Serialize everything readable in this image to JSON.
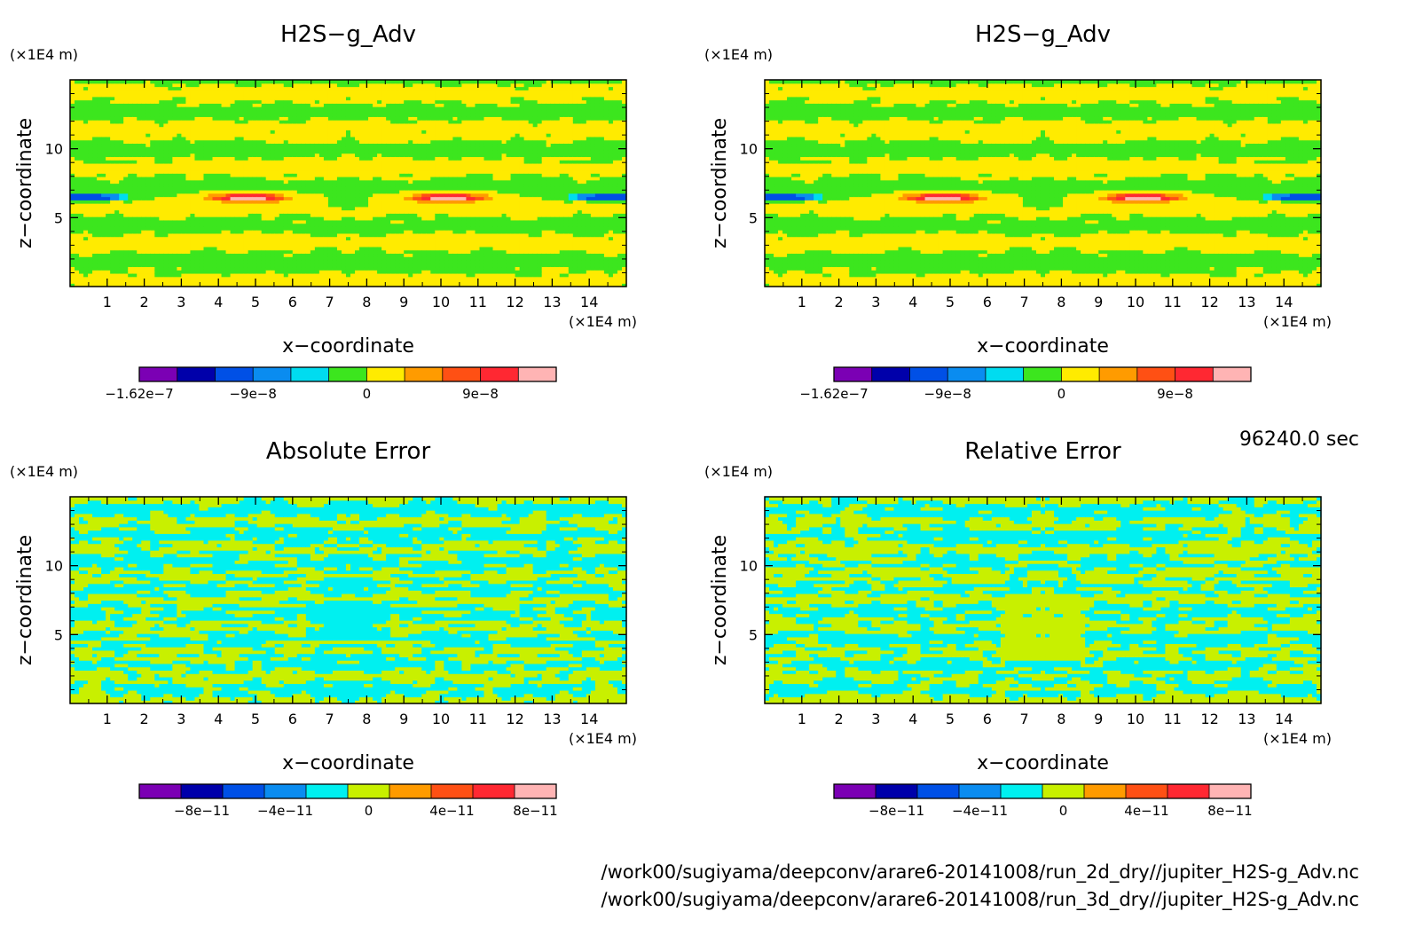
{
  "time_label": "96240.0 sec",
  "footer": {
    "lines": [
      "/work00/sugiyama/deepconv/arare6-20141008/run_2d_dry//jupiter_H2S-g_Adv.nc",
      "/work00/sugiyama/deepconv/arare6-20141008/run_3d_dry//jupiter_H2S-g_Adv.nc"
    ]
  },
  "chart_data": [
    {
      "type": "heatmap",
      "title": "H2S−g_Adv",
      "xlabel": "x−coordinate",
      "ylabel": "z−coordinate",
      "x_unit": "(×1E4 m)",
      "y_unit": "(×1E4 m)",
      "xlim": [
        0,
        15
      ],
      "ylim": [
        0,
        15
      ],
      "xticks": [
        "1",
        "2",
        "3",
        "4",
        "5",
        "6",
        "7",
        "8",
        "9",
        "10",
        "11",
        "12",
        "13",
        "14"
      ],
      "yticks": [
        "5",
        "10"
      ],
      "pattern": "field",
      "colorbar": {
        "colors": [
          "#7b00b4",
          "#0000aa",
          "#0050e6",
          "#0a8cf0",
          "#00dcf0",
          "#3ce61e",
          "#ffeb00",
          "#ff9b00",
          "#ff5014",
          "#ff2832",
          "#ffb4b4"
        ],
        "labels": [
          {
            "text": "−1.62e−7",
            "bin": 0
          },
          {
            "text": "−9e−8",
            "bin": 2.5
          },
          {
            "text": "0",
            "bin": 5.5
          },
          {
            "text": "9e−8",
            "bin": 8.5
          }
        ]
      }
    },
    {
      "type": "heatmap",
      "title": "H2S−g_Adv",
      "xlabel": "x−coordinate",
      "ylabel": "z−coordinate",
      "x_unit": "(×1E4 m)",
      "y_unit": "(×1E4 m)",
      "xlim": [
        0,
        15
      ],
      "ylim": [
        0,
        15
      ],
      "xticks": [
        "1",
        "2",
        "3",
        "4",
        "5",
        "6",
        "7",
        "8",
        "9",
        "10",
        "11",
        "12",
        "13",
        "14"
      ],
      "yticks": [
        "5",
        "10"
      ],
      "pattern": "field",
      "colorbar": {
        "colors": [
          "#7b00b4",
          "#0000aa",
          "#0050e6",
          "#0a8cf0",
          "#00dcf0",
          "#3ce61e",
          "#ffeb00",
          "#ff9b00",
          "#ff5014",
          "#ff2832",
          "#ffb4b4"
        ],
        "labels": [
          {
            "text": "−1.62e−7",
            "bin": 0
          },
          {
            "text": "−9e−8",
            "bin": 2.5
          },
          {
            "text": "0",
            "bin": 5.5
          },
          {
            "text": "9e−8",
            "bin": 8.5
          }
        ]
      }
    },
    {
      "type": "heatmap",
      "title": "Absolute Error",
      "xlabel": "x−coordinate",
      "ylabel": "z−coordinate",
      "x_unit": "(×1E4 m)",
      "y_unit": "(×1E4 m)",
      "xlim": [
        0,
        15
      ],
      "ylim": [
        0,
        15
      ],
      "xticks": [
        "1",
        "2",
        "3",
        "4",
        "5",
        "6",
        "7",
        "8",
        "9",
        "10",
        "11",
        "12",
        "13",
        "14"
      ],
      "yticks": [
        "5",
        "10"
      ],
      "pattern": "error",
      "colorbar": {
        "colors": [
          "#7b00b4",
          "#0000aa",
          "#0050e6",
          "#0a8cf0",
          "#00f0f0",
          "#c8f000",
          "#ff9b00",
          "#ff5014",
          "#ff2832",
          "#ffb4b4"
        ],
        "labels": [
          {
            "text": "−8e−11",
            "bin": 1
          },
          {
            "text": "−4e−11",
            "bin": 3
          },
          {
            "text": "0",
            "bin": 5
          },
          {
            "text": "4e−11",
            "bin": 7
          },
          {
            "text": "8e−11",
            "bin": 9
          }
        ]
      }
    },
    {
      "type": "heatmap",
      "title": "Relative Error",
      "xlabel": "x−coordinate",
      "ylabel": "z−coordinate",
      "x_unit": "(×1E4 m)",
      "y_unit": "(×1E4 m)",
      "xlim": [
        0,
        15
      ],
      "ylim": [
        0,
        15
      ],
      "xticks": [
        "1",
        "2",
        "3",
        "4",
        "5",
        "6",
        "7",
        "8",
        "9",
        "10",
        "11",
        "12",
        "13",
        "14"
      ],
      "yticks": [
        "5",
        "10"
      ],
      "pattern": "error",
      "colorbar": {
        "colors": [
          "#7b00b4",
          "#0000aa",
          "#0050e6",
          "#0a8cf0",
          "#00f0f0",
          "#c8f000",
          "#ff9b00",
          "#ff5014",
          "#ff2832",
          "#ffb4b4"
        ],
        "labels": [
          {
            "text": "−8e−11",
            "bin": 1
          },
          {
            "text": "−4e−11",
            "bin": 3
          },
          {
            "text": "0",
            "bin": 5
          },
          {
            "text": "4e−11",
            "bin": 7
          },
          {
            "text": "8e−11",
            "bin": 9
          }
        ]
      }
    }
  ]
}
